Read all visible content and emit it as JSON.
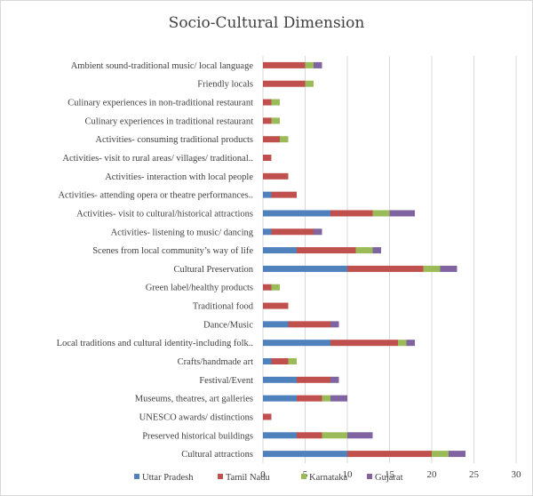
{
  "chart_data": {
    "type": "bar",
    "orientation": "horizontal",
    "stacked": true,
    "title": "Socio-Cultural Dimension",
    "xlim": [
      0,
      30
    ],
    "xticks": [
      0,
      5,
      10,
      15,
      20,
      25,
      30
    ],
    "grid": true,
    "legend_position": "bottom",
    "categories": [
      "Ambient sound-traditional music/ local language",
      "Friendly locals",
      "Culinary experiences in non-traditional restaurant",
      "Culinary experiences in traditional restaurant",
      "Activities- consuming traditional products",
      "Activities- visit to rural areas/ villages/ traditional..",
      "Activities- interaction with local people",
      "Activities- attending opera or theatre performances..",
      "Activities- visit to cultural/historical attractions",
      "Activities- listening to music/ dancing",
      "Scenes from local community’s way of life",
      "Cultural Preservation",
      "Green label/healthy products",
      "Traditional food",
      "Dance/Music",
      "Local traditions and cultural identity-including folk..",
      "Crafts/handmade art",
      "Festival/Event",
      "Museums, theatres, art galleries",
      "UNESCO awards/ distinctions",
      "Preserved historical buildings",
      "Cultural attractions"
    ],
    "series": [
      {
        "name": "Uttar Pradesh",
        "color": "#4f81bd",
        "values": [
          0,
          0,
          0,
          0,
          0,
          0,
          0,
          1,
          8,
          1,
          4,
          10,
          0,
          0,
          3,
          8,
          1,
          4,
          4,
          0,
          4,
          10
        ]
      },
      {
        "name": "Tamil Nadu",
        "color": "#c0504d",
        "values": [
          5,
          5,
          1,
          1,
          2,
          1,
          3,
          3,
          5,
          5,
          7,
          9,
          1,
          3,
          5,
          8,
          2,
          4,
          3,
          1,
          3,
          10
        ]
      },
      {
        "name": "Karnataka",
        "color": "#9bbb59",
        "values": [
          1,
          1,
          1,
          1,
          1,
          0,
          0,
          0,
          2,
          0,
          2,
          2,
          1,
          0,
          0,
          1,
          1,
          0,
          1,
          0,
          3,
          2
        ]
      },
      {
        "name": "Gujarat",
        "color": "#8064a2",
        "values": [
          1,
          0,
          0,
          0,
          0,
          0,
          0,
          0,
          3,
          1,
          1,
          2,
          0,
          0,
          1,
          1,
          0,
          1,
          2,
          0,
          3,
          2
        ]
      }
    ]
  }
}
